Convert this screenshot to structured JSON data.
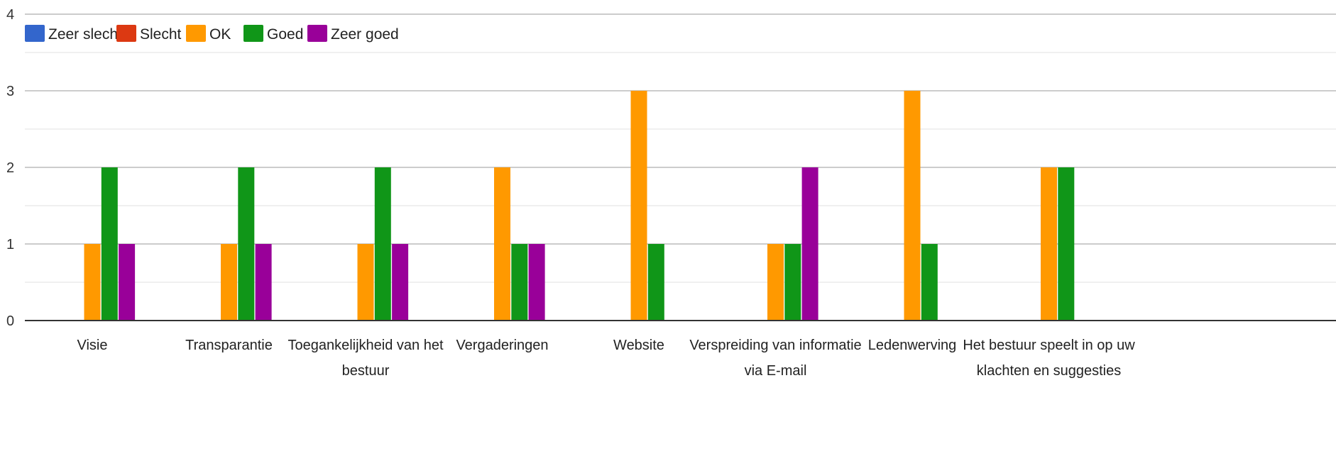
{
  "chart_data": {
    "type": "bar",
    "title": "",
    "xlabel": "",
    "ylabel": "",
    "ylim": [
      0,
      4
    ],
    "yticks": [
      "0",
      "1",
      "2",
      "3",
      "4"
    ],
    "grid": true,
    "legend_position": "top-left",
    "categories": [
      [
        "Visie"
      ],
      [
        "Transparantie"
      ],
      [
        "Toegankelijkheid van het",
        "bestuur"
      ],
      [
        "Vergaderingen"
      ],
      [
        "Website"
      ],
      [
        "Verspreiding van informatie",
        "via E-mail"
      ],
      [
        "Ledenwerving"
      ],
      [
        "Het bestuur speelt in op uw",
        "klachten en suggesties"
      ]
    ],
    "series": [
      {
        "name": "Zeer slecht",
        "color": "#3366cc",
        "values": [
          0,
          0,
          0,
          0,
          0,
          0,
          0,
          0
        ]
      },
      {
        "name": "Slecht",
        "color": "#dc3912",
        "values": [
          0,
          0,
          0,
          0,
          0,
          0,
          0,
          0
        ]
      },
      {
        "name": "OK",
        "color": "#ff9900",
        "values": [
          1,
          1,
          1,
          2,
          3,
          1,
          3,
          2
        ]
      },
      {
        "name": "Goed",
        "color": "#109618",
        "values": [
          2,
          2,
          2,
          1,
          1,
          1,
          1,
          2
        ]
      },
      {
        "name": "Zeer goed",
        "color": "#990099",
        "values": [
          1,
          1,
          1,
          1,
          0,
          2,
          0,
          0
        ]
      }
    ]
  }
}
